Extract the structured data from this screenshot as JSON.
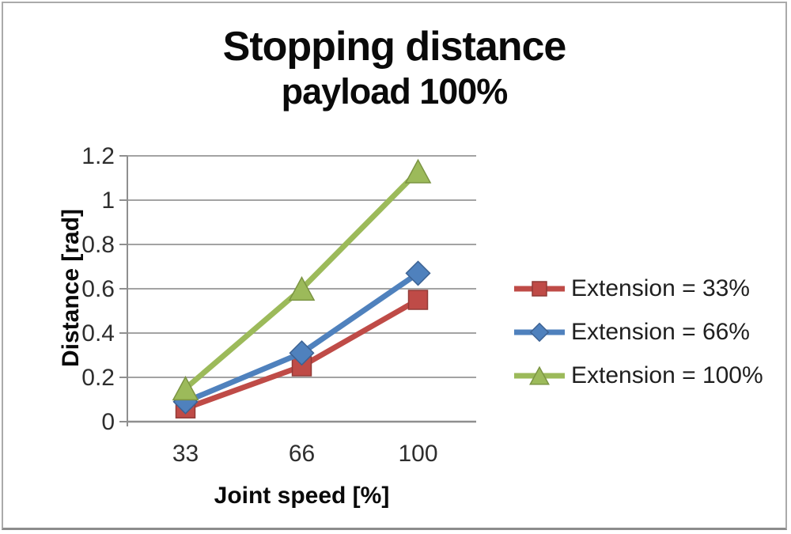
{
  "chart_data": {
    "type": "line",
    "title": "Stopping distance",
    "subtitle": "payload 100%",
    "xlabel": "Joint speed [%]",
    "ylabel": "Distance [rad]",
    "categories": [
      "33",
      "66",
      "100"
    ],
    "y_ticks": [
      "0",
      "0.2",
      "0.4",
      "0.6",
      "0.8",
      "1",
      "1.2"
    ],
    "ylim": [
      0,
      1.2
    ],
    "grid": "horizontal-only",
    "legend_position": "right",
    "series": [
      {
        "name": "Extension = 33%",
        "marker": "square",
        "color": "#bf4b47",
        "edge_color": "#913a37",
        "values": [
          0.06,
          0.25,
          0.55
        ]
      },
      {
        "name": "Extension = 66%",
        "marker": "diamond",
        "color": "#4f81bd",
        "edge_color": "#3c6293",
        "values": [
          0.09,
          0.31,
          0.67
        ]
      },
      {
        "name": "Extension = 100%",
        "marker": "triangle",
        "color": "#9cba5a",
        "edge_color": "#7b9443",
        "values": [
          0.15,
          0.6,
          1.13
        ]
      }
    ],
    "colors": {
      "gridline": "#a3a3a3",
      "axis": "#8f8f8f",
      "tick_text": "#2e2e2e",
      "title_text": "#0a0a0a",
      "background": "#ffffff"
    }
  }
}
